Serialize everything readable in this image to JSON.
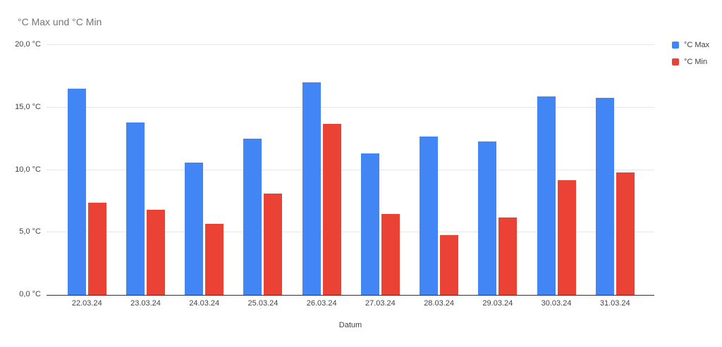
{
  "title": "°C Max und °C Min",
  "x_axis_title": "Datum",
  "legend": {
    "items": [
      {
        "label": "°C Max",
        "color": "#4285F4"
      },
      {
        "label": "°C Min",
        "color": "#EA4335"
      }
    ]
  },
  "chart_data": {
    "type": "bar",
    "title": "°C Max und °C Min",
    "xlabel": "Datum",
    "ylabel": "",
    "categories": [
      "22.03.24",
      "23.03.24",
      "24.03.24",
      "25.03.24",
      "26.03.24",
      "27.03.24",
      "28.03.24",
      "29.03.24",
      "30.03.24",
      "31.03.24"
    ],
    "series": [
      {
        "name": "°C Max",
        "color": "#4285F4",
        "values": [
          16.5,
          13.8,
          10.6,
          12.5,
          17.0,
          11.3,
          12.7,
          12.3,
          15.9,
          15.8
        ]
      },
      {
        "name": "°C Min",
        "color": "#EA4335",
        "values": [
          7.4,
          6.8,
          5.7,
          8.1,
          13.7,
          6.5,
          4.8,
          6.2,
          9.2,
          9.8
        ]
      }
    ],
    "ylim": [
      0,
      20
    ],
    "yticks": [
      {
        "value": 0,
        "label": "0,0 °C"
      },
      {
        "value": 5,
        "label": "5,0 °C"
      },
      {
        "value": 10,
        "label": "10,0 °C"
      },
      {
        "value": 15,
        "label": "15,0 °C"
      },
      {
        "value": 20,
        "label": "20,0 °C"
      }
    ],
    "grid": true,
    "legend_position": "right"
  },
  "colors": {
    "series_max": "#4285F4",
    "series_min": "#EA4335",
    "gridline": "#e6e6e6",
    "axis_line": "#333333",
    "title_text": "#757575",
    "tick_text": "#424242"
  }
}
